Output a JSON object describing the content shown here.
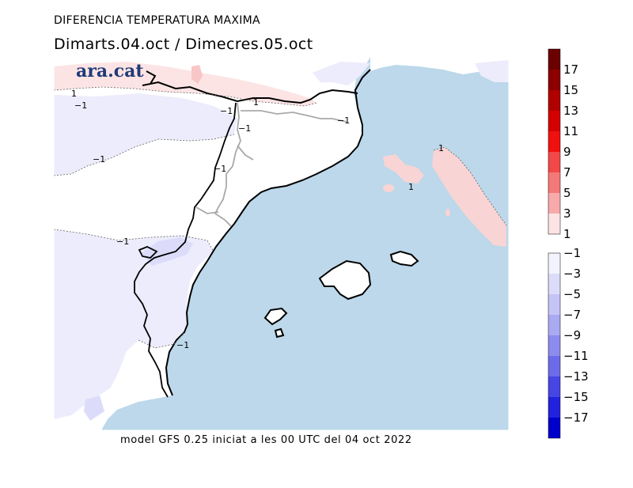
{
  "header": {
    "title": "DIFERENCIA TEMPERATURA MAXIMA",
    "subtitle": "Dimarts.04.oct / Dimecres.05.oct"
  },
  "logo": {
    "text": "ara.cat"
  },
  "footer": {
    "text": "model GFS 0.25 iniciat a les 00 UTC del 04 oct 2022"
  },
  "map": {
    "contour_labels": [
      "1",
      "−1",
      "1",
      "−1",
      "−1",
      "−1",
      "−1",
      "−1",
      "1",
      "1",
      "−1",
      "−1"
    ],
    "colors": {
      "sea": "#bcd8ea",
      "land": "#ffffff",
      "coast": "#000000",
      "border": "#a9a9a9"
    }
  },
  "colorbar": {
    "positive": {
      "labels": [
        "17",
        "15",
        "13",
        "11",
        "9",
        "7",
        "5",
        "3",
        "1"
      ],
      "colors": [
        "#6b0000",
        "#8c0000",
        "#b00000",
        "#d40000",
        "#f01010",
        "#f24848",
        "#f57878",
        "#f8aaaa",
        "#fde4e4"
      ]
    },
    "negative": {
      "labels": [
        "−1",
        "−3",
        "−5",
        "−7",
        "−9",
        "−11",
        "−13",
        "−15",
        "−17"
      ],
      "colors": [
        "#f3f3fe",
        "#dcdcfa",
        "#c4c4f6",
        "#aaaaf2",
        "#8c8cee",
        "#6c6cea",
        "#4646e4",
        "#2222de",
        "#0000cc"
      ]
    }
  }
}
